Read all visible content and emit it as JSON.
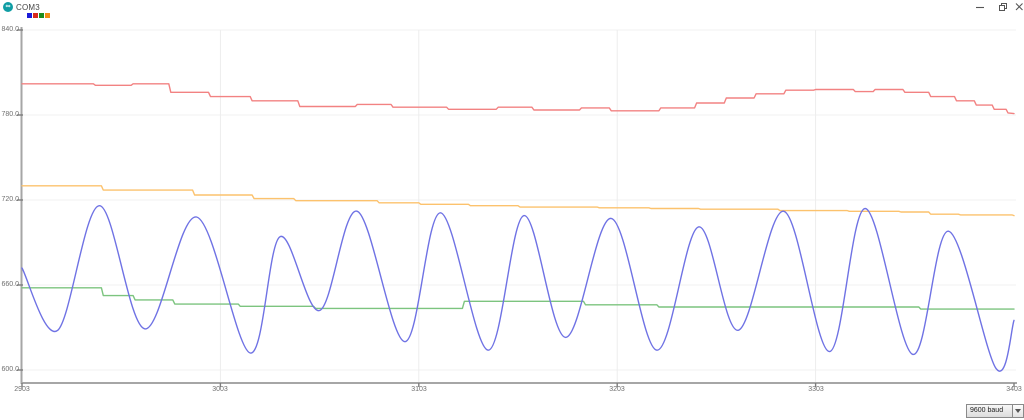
{
  "window": {
    "title": "COM3",
    "icon_glyph": "∞",
    "icon_color": "#0f9da4"
  },
  "status_bar": {
    "baud_selector": {
      "value": "9600 baud"
    }
  },
  "chart_data": {
    "type": "line",
    "title": "",
    "xlabel": "",
    "ylabel": "",
    "grid": true,
    "legend_position": "top-left",
    "x_axis": {
      "min": 2903,
      "max": 3403,
      "ticks": [
        2903,
        3003,
        3103,
        3203,
        3303,
        3403
      ],
      "tick_labels": [
        "2903",
        "3003",
        "3103",
        "3203",
        "3303",
        "3403"
      ]
    },
    "y_axis": {
      "min": 591,
      "max": 840,
      "ticks": [
        840,
        780,
        720,
        660,
        600
      ],
      "tick_labels": [
        "840.0",
        "780.0",
        "720.0",
        "660.0",
        "600.0"
      ]
    },
    "series": [
      {
        "name": "blue",
        "legend_color": "#1c1cd8",
        "line_color": "#6f72e4",
        "smooth": true,
        "points": [
          [
            2903,
            672
          ],
          [
            2921,
            628
          ],
          [
            2942,
            716
          ],
          [
            2965,
            629
          ],
          [
            2991,
            708
          ],
          [
            3018,
            612
          ],
          [
            3033,
            694
          ],
          [
            3053,
            642
          ],
          [
            3072,
            712
          ],
          [
            3096,
            620
          ],
          [
            3114,
            711
          ],
          [
            3138,
            614
          ],
          [
            3156,
            709
          ],
          [
            3177,
            623
          ],
          [
            3200,
            707
          ],
          [
            3223,
            614
          ],
          [
            3244,
            701
          ],
          [
            3264,
            628
          ],
          [
            3287,
            712
          ],
          [
            3310,
            613
          ],
          [
            3328,
            714
          ],
          [
            3352,
            611
          ],
          [
            3370,
            698
          ],
          [
            3394,
            601
          ],
          [
            3403,
            635
          ]
        ]
      },
      {
        "name": "red",
        "legend_color": "#d8281c",
        "line_color": "#f28282",
        "smooth": false,
        "points": [
          [
            2903,
            802
          ],
          [
            2939,
            802
          ],
          [
            2940,
            801
          ],
          [
            2958,
            801
          ],
          [
            2959,
            802
          ],
          [
            2977,
            802
          ],
          [
            2978,
            796
          ],
          [
            2997,
            796
          ],
          [
            2998,
            793
          ],
          [
            3018,
            793
          ],
          [
            3019,
            790
          ],
          [
            3042,
            790
          ],
          [
            3043,
            786
          ],
          [
            3071,
            786
          ],
          [
            3072,
            787.5
          ],
          [
            3089,
            787.5
          ],
          [
            3090,
            785.5
          ],
          [
            3117,
            785.5
          ],
          [
            3118,
            784
          ],
          [
            3142,
            784
          ],
          [
            3143,
            785.5
          ],
          [
            3160,
            785.5
          ],
          [
            3161,
            783.5
          ],
          [
            3184,
            783.5
          ],
          [
            3185,
            785
          ],
          [
            3199,
            785
          ],
          [
            3200,
            783
          ],
          [
            3224,
            783
          ],
          [
            3225,
            785
          ],
          [
            3242,
            785
          ],
          [
            3243,
            788.5
          ],
          [
            3257,
            788.5
          ],
          [
            3258,
            792
          ],
          [
            3272,
            792
          ],
          [
            3273,
            795
          ],
          [
            3287,
            795
          ],
          [
            3288,
            797.5
          ],
          [
            3302,
            797.5
          ],
          [
            3303,
            798
          ],
          [
            3322,
            798
          ],
          [
            3323,
            796.5
          ],
          [
            3332,
            796.5
          ],
          [
            3333,
            798
          ],
          [
            3347,
            798
          ],
          [
            3348,
            796
          ],
          [
            3360,
            796
          ],
          [
            3361,
            793
          ],
          [
            3373,
            793
          ],
          [
            3374,
            790
          ],
          [
            3383,
            790
          ],
          [
            3384,
            787
          ],
          [
            3392,
            787
          ],
          [
            3393,
            784
          ],
          [
            3399,
            784
          ],
          [
            3400,
            781.5
          ],
          [
            3403,
            781
          ]
        ]
      },
      {
        "name": "green",
        "legend_color": "#1c8c1c",
        "line_color": "#7cc47f",
        "smooth": false,
        "points": [
          [
            2903,
            658
          ],
          [
            2943,
            658
          ],
          [
            2944,
            652.5
          ],
          [
            2959,
            652.5
          ],
          [
            2960,
            649.5
          ],
          [
            2979,
            649.5
          ],
          [
            2980,
            646.5
          ],
          [
            3012,
            646.5
          ],
          [
            3013,
            645
          ],
          [
            3050,
            645
          ],
          [
            3051,
            643.5
          ],
          [
            3125,
            643.5
          ],
          [
            3126,
            648.5
          ],
          [
            3186,
            648.5
          ],
          [
            3187,
            646
          ],
          [
            3223,
            646
          ],
          [
            3224,
            644.5
          ],
          [
            3355,
            644.5
          ],
          [
            3356,
            643
          ],
          [
            3403,
            643
          ]
        ]
      },
      {
        "name": "orange",
        "legend_color": "#f08c14",
        "line_color": "#fcc26d",
        "smooth": false,
        "points": [
          [
            2903,
            730
          ],
          [
            2943,
            730
          ],
          [
            2944,
            727
          ],
          [
            2989,
            727
          ],
          [
            2990,
            723.5
          ],
          [
            3019,
            723.5
          ],
          [
            3020,
            721
          ],
          [
            3040,
            721
          ],
          [
            3041,
            719.5
          ],
          [
            3082,
            719.5
          ],
          [
            3083,
            718
          ],
          [
            3103,
            718
          ],
          [
            3104,
            717
          ],
          [
            3128,
            717
          ],
          [
            3129,
            716
          ],
          [
            3153,
            716
          ],
          [
            3154,
            715
          ],
          [
            3193,
            715
          ],
          [
            3194,
            714.5
          ],
          [
            3219,
            714.5
          ],
          [
            3220,
            714
          ],
          [
            3244,
            714
          ],
          [
            3245,
            713.5
          ],
          [
            3284,
            713.5
          ],
          [
            3285,
            712.5
          ],
          [
            3319,
            712.5
          ],
          [
            3320,
            712
          ],
          [
            3345,
            712
          ],
          [
            3346,
            711.5
          ],
          [
            3360,
            711.5
          ],
          [
            3361,
            710
          ],
          [
            3375,
            710
          ],
          [
            3376,
            709.5
          ],
          [
            3402,
            709.5
          ],
          [
            3403,
            709
          ]
        ]
      }
    ]
  }
}
